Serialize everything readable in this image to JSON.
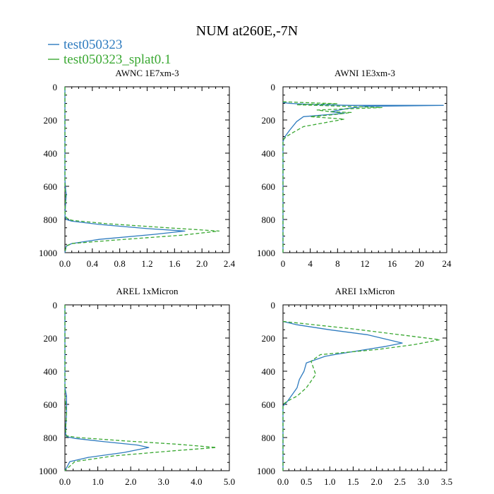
{
  "figure": {
    "title": "NUM at260E,-7N",
    "colors": {
      "series_1": "#2e7bbf",
      "series_2": "#3aa832",
      "axis": "#000000"
    },
    "legend": [
      {
        "label": "test050323",
        "color": "#2e7bbf",
        "style": "solid"
      },
      {
        "label": "test050323_splat0.1",
        "color": "#3aa832",
        "style": "dashed"
      }
    ]
  },
  "chart_data": [
    {
      "type": "line",
      "title": "AWNC  1E7xm-3",
      "xlim": [
        0,
        2.4
      ],
      "ylim": [
        1000,
        0
      ],
      "xticks": [
        "0.0",
        "0.4",
        "0.8",
        "1.2",
        "1.6",
        "2.0",
        "2.4"
      ],
      "xtick_values": [
        0,
        0.4,
        0.8,
        1.2,
        1.6,
        2.0,
        2.4
      ],
      "yticks": [
        "0",
        "200",
        "400",
        "600",
        "800",
        "1000"
      ],
      "ytick_values": [
        0,
        200,
        400,
        600,
        800,
        1000
      ],
      "series": [
        {
          "name": "test050323",
          "style": "solid",
          "x": [
            0,
            0,
            0.01,
            0.02,
            0.01,
            0,
            0.02,
            0.1,
            0.5,
            1.2,
            1.75,
            1.3,
            0.5,
            0.1,
            0.02,
            0
          ],
          "y": [
            0,
            560,
            620,
            650,
            700,
            780,
            800,
            810,
            830,
            855,
            870,
            890,
            920,
            945,
            960,
            1000
          ]
        },
        {
          "name": "test050323_splat0.1",
          "style": "dashed",
          "x": [
            0,
            0,
            0.01,
            0,
            0.02,
            0.1,
            0.6,
            1.5,
            2.25,
            1.7,
            0.7,
            0.1,
            0.02,
            0
          ],
          "y": [
            0,
            600,
            660,
            760,
            790,
            805,
            825,
            850,
            870,
            895,
            925,
            945,
            960,
            1000
          ]
        }
      ]
    },
    {
      "type": "line",
      "title": "AWNI  1E3xm-3",
      "xlim": [
        0,
        24
      ],
      "ylim": [
        1000,
        0
      ],
      "xticks": [
        "0",
        "4",
        "8",
        "12",
        "16",
        "20",
        "24"
      ],
      "xtick_values": [
        0,
        4,
        8,
        12,
        16,
        20,
        24
      ],
      "yticks": [
        "0",
        "200",
        "400",
        "600",
        "800",
        "1000"
      ],
      "ytick_values": [
        0,
        200,
        400,
        600,
        800,
        1000
      ],
      "series": [
        {
          "name": "test050323",
          "style": "solid",
          "x": [
            0,
            1,
            5,
            10,
            23.5,
            12,
            9.5,
            7,
            9,
            6,
            3,
            2,
            1,
            0.3,
            0,
            0
          ],
          "y": [
            95,
            100,
            108,
            112,
            112,
            118,
            130,
            150,
            160,
            170,
            180,
            210,
            260,
            300,
            330,
            1000
          ]
        },
        {
          "name": "test050323_splat0.1",
          "style": "dashed",
          "x": [
            0,
            3,
            8,
            2,
            14.5,
            5,
            7,
            10,
            7,
            4,
            9,
            3,
            1.5,
            0.5,
            0,
            0
          ],
          "y": [
            90,
            95,
            102,
            108,
            125,
            140,
            150,
            155,
            170,
            180,
            195,
            240,
            275,
            300,
            320,
            1000
          ]
        }
      ]
    },
    {
      "type": "line",
      "title": "AREL  1xMicron",
      "xlim": [
        0,
        5.0
      ],
      "ylim": [
        1000,
        0
      ],
      "xticks": [
        "0.0",
        "1.0",
        "2.0",
        "3.0",
        "4.0",
        "5.0"
      ],
      "xtick_values": [
        0,
        1,
        2,
        3,
        4,
        5
      ],
      "yticks": [
        "0",
        "200",
        "400",
        "600",
        "800",
        "1000"
      ],
      "ytick_values": [
        0,
        200,
        400,
        600,
        800,
        1000
      ],
      "series": [
        {
          "name": "test050323",
          "style": "solid",
          "x": [
            0,
            0,
            0.05,
            0.05,
            0.03,
            0.02,
            0.05,
            0.3,
            1.2,
            2.2,
            2.55,
            1.8,
            0.7,
            0.15,
            0
          ],
          "y": [
            0,
            500,
            550,
            650,
            720,
            780,
            795,
            805,
            825,
            845,
            860,
            890,
            920,
            945,
            1000
          ]
        },
        {
          "name": "test050323_splat0.1",
          "style": "dashed",
          "x": [
            0,
            0,
            0.05,
            0.02,
            0.05,
            0.4,
            1.8,
            3.4,
            4.6,
            3.3,
            1.5,
            0.3,
            0
          ],
          "y": [
            0,
            550,
            650,
            760,
            790,
            800,
            820,
            840,
            860,
            880,
            910,
            945,
            1000
          ]
        }
      ]
    },
    {
      "type": "line",
      "title": "AREI  1xMicron",
      "xlim": [
        0,
        3.5
      ],
      "ylim": [
        1000,
        0
      ],
      "xticks": [
        "0.0",
        "0.5",
        "1.0",
        "1.5",
        "2.0",
        "2.5",
        "3.0",
        "3.5"
      ],
      "xtick_values": [
        0,
        0.5,
        1.0,
        1.5,
        2.0,
        2.5,
        3.0,
        3.5
      ],
      "yticks": [
        "0",
        "200",
        "400",
        "600",
        "800",
        "1000"
      ],
      "ytick_values": [
        0,
        200,
        400,
        600,
        800,
        1000
      ],
      "series": [
        {
          "name": "test050323",
          "style": "solid",
          "x": [
            0,
            0.3,
            1.0,
            1.8,
            2.1,
            2.55,
            2.2,
            1.1,
            0.9,
            0.5,
            0.45,
            0.35,
            0.3,
            0.2,
            0.1,
            0,
            0
          ],
          "y": [
            100,
            120,
            150,
            180,
            200,
            230,
            250,
            300,
            310,
            350,
            400,
            450,
            500,
            540,
            580,
            610,
            1000
          ]
        },
        {
          "name": "test050323_splat0.1",
          "style": "dashed",
          "x": [
            0,
            0.5,
            1.5,
            2.5,
            3.35,
            2.8,
            2.0,
            0.8,
            0.6,
            0.7,
            0.5,
            0.3,
            0.1,
            0,
            0
          ],
          "y": [
            100,
            115,
            145,
            180,
            210,
            240,
            270,
            300,
            340,
            420,
            500,
            550,
            580,
            600,
            1000
          ]
        }
      ]
    }
  ]
}
